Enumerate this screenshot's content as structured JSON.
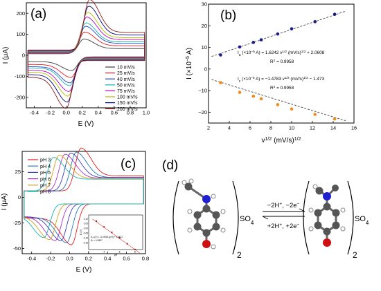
{
  "chart_data": [
    {
      "panel": "(a)",
      "type": "line",
      "xlabel": "E (V)",
      "ylabel": "I (μA)",
      "xlim": [
        -0.5,
        1.0
      ],
      "ylim": [
        -250,
        250
      ],
      "xticks": [
        -0.4,
        -0.2,
        0.0,
        0.2,
        0.4,
        0.6,
        0.8,
        1.0
      ],
      "yticks": [
        -200,
        -100,
        0,
        100,
        200
      ],
      "xtick_labels": [
        "-0.4",
        "-0.2",
        "0.0",
        "0.2",
        "0.4",
        "0.6",
        "0.8",
        "1.0"
      ],
      "ytick_labels": [
        "-200",
        "-100",
        "0",
        "100",
        "200"
      ],
      "legend_position": "bottom-right",
      "series": [
        {
          "name": "10 mV/s",
          "color": "#3b3b3b",
          "ipa": 70,
          "ipc": -65,
          "epa": 0.22,
          "epc": 0.07
        },
        {
          "name": "25 mV/s",
          "color": "#e41a1c",
          "ipa": 100,
          "ipc": -95,
          "epa": 0.23,
          "epc": 0.06
        },
        {
          "name": "40 mV/s",
          "color": "#1f45c8",
          "ipa": 125,
          "ipc": -118,
          "epa": 0.24,
          "epc": 0.05
        },
        {
          "name": "50 mV/s",
          "color": "#10b0b0",
          "ipa": 140,
          "ipc": -130,
          "epa": 0.245,
          "epc": 0.045
        },
        {
          "name": "75 mV/s",
          "color": "#c000c0",
          "ipa": 165,
          "ipc": -155,
          "epa": 0.255,
          "epc": 0.035
        },
        {
          "name": "100 mV/s",
          "color": "#b8b800",
          "ipa": 185,
          "ipc": -175,
          "epa": 0.265,
          "epc": 0.025
        },
        {
          "name": "150 mV/s",
          "color": "#000080",
          "ipa": 212,
          "ipc": -200,
          "epa": 0.28,
          "epc": 0.015
        },
        {
          "name": "200 mV/s",
          "color": "#8b1a1a",
          "ipa": 240,
          "ipc": -228,
          "epa": 0.29,
          "epc": 0.0
        }
      ]
    },
    {
      "panel": "(b)",
      "type": "scatter",
      "xlabel": "v",
      "xlabel_sup": "1/2",
      "xlabel_unit": "(mV/s)",
      "xlabel_unit_sup": "1/2",
      "ylabel": "I (×10",
      "ylabel_sup": "−5",
      "ylabel_unit": "A)",
      "xlim": [
        2,
        16
      ],
      "ylim": [
        -25,
        30
      ],
      "xticks": [
        2,
        4,
        6,
        8,
        10,
        12,
        14,
        16
      ],
      "yticks": [
        -20,
        -10,
        0,
        10,
        20,
        30
      ],
      "xtick_labels": [
        "2",
        "4",
        "6",
        "8",
        "10",
        "12",
        "14",
        "16"
      ],
      "ytick_labels": [
        "−20",
        "−10",
        "0",
        "10",
        "20",
        "30"
      ],
      "x": [
        3.16,
        5.0,
        6.32,
        7.07,
        8.66,
        10.0,
        12.25,
        14.14
      ],
      "series": [
        {
          "kind": "anodic",
          "color": "#1a1a8c",
          "values": [
            6.5,
            10.2,
            12.3,
            13.5,
            16.2,
            18.6,
            21.9,
            25.3
          ],
          "fit": [
            1.6242,
            2.0608
          ]
        },
        {
          "kind": "cathodic",
          "color": "#f08c1e",
          "values": [
            -6.3,
            -10.8,
            -12.6,
            -13.8,
            -16.5,
            -18.5,
            -21.0,
            -23.1
          ],
          "fit": [
            -1.4783,
            -1.473
          ]
        }
      ],
      "annotations": [
        {
          "text": "I",
          "sub": "a",
          "rest": " (×10",
          "sup": "−5",
          "tail": " A) = 1.6242 v",
          "sup2": "1/2",
          "tail2": " (mV/s)",
          "sup3": "1/2",
          "tail3": " + 2.0608"
        },
        {
          "text": "R",
          "sup": "2",
          "tail": " = 0.9958"
        },
        {
          "text": "I",
          "sub": "c",
          "rest": " (×10",
          "sup": "−5",
          "tail": " A) = −1.4783 v",
          "sup2": "1/2",
          "tail2": " (mV/s)",
          "sup3": "1/2",
          "tail3": " − 1.473"
        },
        {
          "text": "R",
          "sup": "2",
          "tail": " = 0.9958"
        }
      ]
    },
    {
      "panel": "(c)",
      "type": "line",
      "xlabel": "E (V)",
      "ylabel": "I (μA)",
      "xlim": [
        -0.5,
        0.8
      ],
      "ylim": [
        -55,
        45
      ],
      "xticks": [
        -0.4,
        -0.2,
        0.0,
        0.2,
        0.4,
        0.6,
        0.8
      ],
      "yticks": [
        -50,
        -25,
        0,
        25
      ],
      "xtick_labels": [
        "-0.4",
        "-0.2",
        "0.0",
        "0.2",
        "0.4",
        "0.6",
        "0.8"
      ],
      "ytick_labels": [
        "-50",
        "-25",
        "0",
        "25"
      ],
      "legend_position": "top-left",
      "series": [
        {
          "name": "pH 3",
          "color": "#e41a1c",
          "epa": 0.12,
          "epc": 0.02,
          "ipa": 42,
          "ipc": -40
        },
        {
          "name": "pH 4",
          "color": "#1f78b4",
          "epa": 0.07,
          "epc": -0.03,
          "ipa": 38,
          "ipc": -38
        },
        {
          "name": "pH 5",
          "color": "#3a3ab8",
          "epa": 0.01,
          "epc": -0.09,
          "ipa": 37,
          "ipc": -36
        },
        {
          "name": "pH 6",
          "color": "#b030c0",
          "epa": -0.05,
          "epc": -0.15,
          "ipa": 36,
          "ipc": -36
        },
        {
          "name": "pH 7",
          "color": "#d4a017",
          "epa": -0.11,
          "epc": -0.21,
          "ipa": 35,
          "ipc": -35
        },
        {
          "name": "pH 8",
          "color": "#10b0b0",
          "epa": -0.17,
          "epc": -0.27,
          "ipa": 33,
          "ipc": -33
        }
      ],
      "inset": {
        "type": "scatter",
        "ylabel": "E (V)",
        "xlabel": "pH",
        "xlim": [
          2,
          9
        ],
        "ylim": [
          -0.22,
          0.14
        ],
        "xticks": [
          2,
          4,
          6,
          8
        ],
        "yticks": [
          -0.15,
          -0.1,
          -0.05,
          0.0,
          0.05,
          0.1
        ],
        "xtick_labels": [
          "2",
          "4",
          "6",
          "8"
        ],
        "ytick_labels": [
          "-0.15",
          "-0.10",
          "-0.05",
          "0.00",
          "0.05",
          "0.10"
        ],
        "x": [
          3,
          4,
          5,
          6,
          7,
          8
        ],
        "values": [
          0.075,
          0.016,
          -0.042,
          -0.101,
          -0.16,
          -0.219
        ],
        "fit": [
          -0.05781,
          0.2421
        ],
        "annotations": [
          "E₁/₂(V) = -0.05781 [pH] + 0.2421",
          "R² = 0.9997"
        ]
      }
    }
  ],
  "scheme": {
    "panel": "(d)",
    "left_subscript": "2",
    "right_subscript": "2",
    "left_counterion": "SO",
    "left_counterion_sub": "4",
    "right_counterion": "SO",
    "right_counterion_sub": "4",
    "forward": "−2H",
    "forward_sup": "+",
    "forward_rest": ", −2e",
    "forward_sup2": "−",
    "backward": "+2H",
    "backward_sup": "+",
    "backward_rest": ", +2e",
    "backward_sup2": "−",
    "atom_colors": {
      "carbon": "#555555",
      "hydrogen": "#ffffff",
      "nitrogen": "#2020d0",
      "oxygen": "#d01010"
    }
  }
}
